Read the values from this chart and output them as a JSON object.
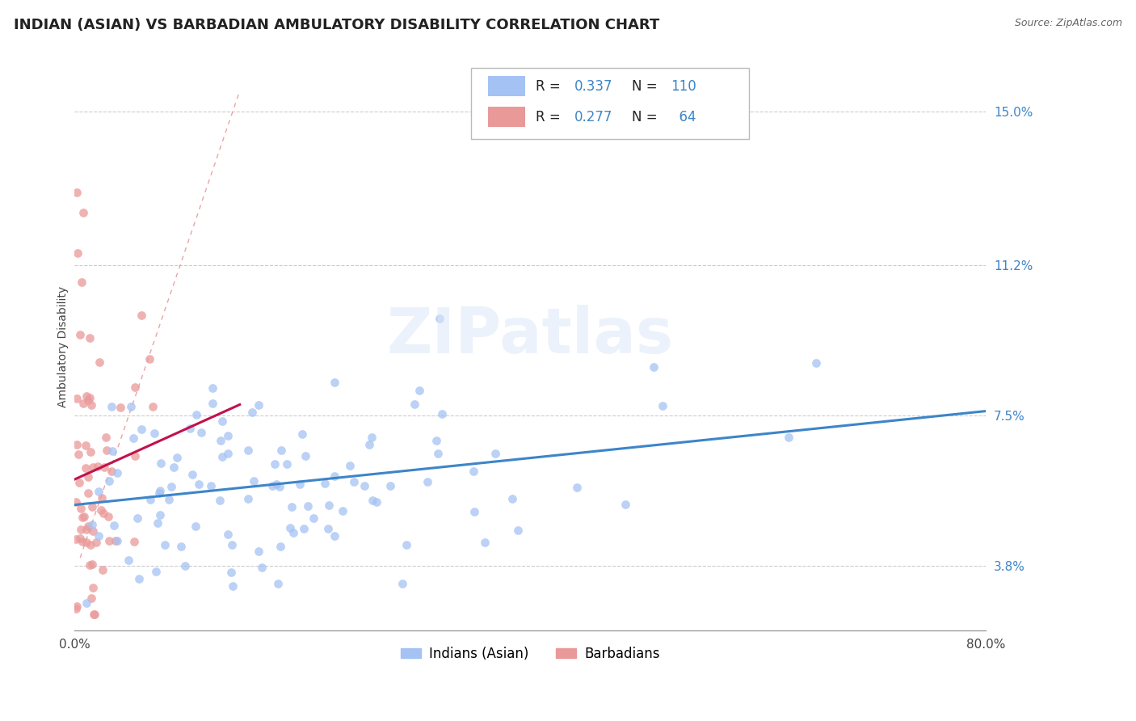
{
  "title": "INDIAN (ASIAN) VS BARBADIAN AMBULATORY DISABILITY CORRELATION CHART",
  "source": "Source: ZipAtlas.com",
  "ylabel": "Ambulatory Disability",
  "xlim": [
    0.0,
    0.8
  ],
  "ylim": [
    0.022,
    0.162
  ],
  "xticks": [
    0.0,
    0.1,
    0.2,
    0.3,
    0.4,
    0.5,
    0.6,
    0.7,
    0.8
  ],
  "xticklabels": [
    "0.0%",
    "",
    "",
    "",
    "",
    "",
    "",
    "",
    "80.0%"
  ],
  "ytick_positions": [
    0.038,
    0.075,
    0.112,
    0.15
  ],
  "yticklabels": [
    "3.8%",
    "7.5%",
    "11.2%",
    "15.0%"
  ],
  "blue_color": "#a4c2f4",
  "pink_color": "#ea9999",
  "blue_line_color": "#3d85c8",
  "pink_line_color": "#c2114b",
  "diag_color": "#e06666",
  "watermark": "ZIPatlas",
  "R_blue": 0.337,
  "N_blue": 110,
  "R_pink": 0.277,
  "N_pink": 64,
  "legend_Indians": "Indians (Asian)",
  "legend_Barbadians": "Barbadians",
  "title_fontsize": 13,
  "axis_label_fontsize": 10,
  "tick_fontsize": 11,
  "blue_seed": 42,
  "pink_seed": 7,
  "blue_intercept": 0.054,
  "blue_slope": 0.025,
  "pink_intercept": 0.048,
  "pink_slope": 0.42
}
